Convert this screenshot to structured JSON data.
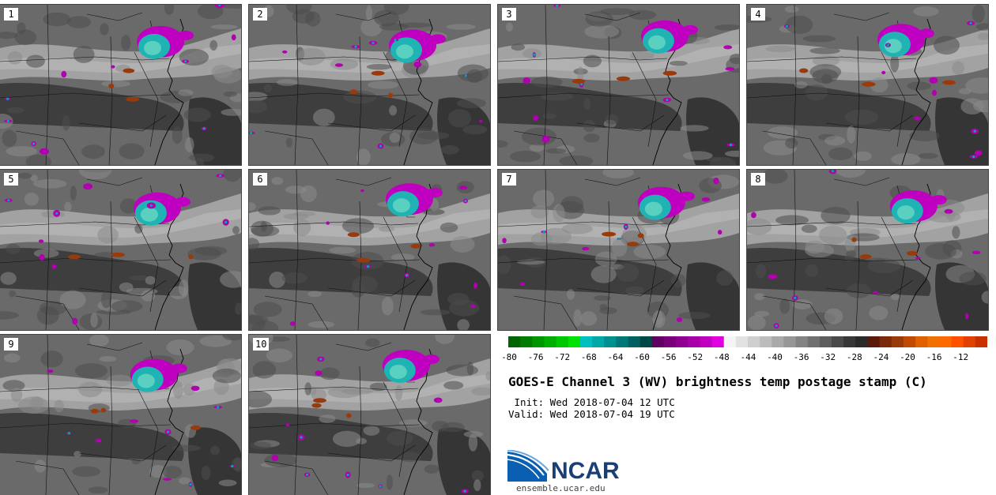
{
  "panels": [
    {
      "label": "1"
    },
    {
      "label": "2"
    },
    {
      "label": "3"
    },
    {
      "label": "4"
    },
    {
      "label": "5"
    },
    {
      "label": "6"
    },
    {
      "label": "7"
    },
    {
      "label": "8"
    },
    {
      "label": "9"
    },
    {
      "label": "10"
    }
  ],
  "colorbar": {
    "ticks": [
      "-80",
      "-76",
      "-72",
      "-68",
      "-64",
      "-60",
      "-56",
      "-52",
      "-48",
      "-44",
      "-40",
      "-36",
      "-32",
      "-28",
      "-24",
      "-20",
      "-16",
      "-12"
    ],
    "colors": [
      "#006400",
      "#007d00",
      "#009600",
      "#00af00",
      "#00c800",
      "#00e100",
      "#00bfbf",
      "#00a8a8",
      "#009090",
      "#007878",
      "#006060",
      "#004848",
      "#600060",
      "#780078",
      "#900090",
      "#a800a8",
      "#c000c0",
      "#e000e0",
      "#f5f5f5",
      "#e2e2e2",
      "#cfcfcf",
      "#bcbcbc",
      "#a9a9a9",
      "#969696",
      "#838383",
      "#707070",
      "#5d5d5d",
      "#4a4a4a",
      "#373737",
      "#2a2a2a",
      "#5a1a0a",
      "#7a2a0a",
      "#9a3a0a",
      "#c04a00",
      "#e06000",
      "#f07000",
      "#ff6a00",
      "#ff5000",
      "#e04000",
      "#c83000"
    ]
  },
  "title": "GOES-E Channel 3 (WV) brightness temp postage stamp (C)",
  "init": " Init: Wed 2018-07-04 12 UTC",
  "valid": "Valid: Wed 2018-07-04 19 UTC",
  "logo": {
    "name": "NCAR",
    "url": "ensemble.ucar.edu"
  }
}
